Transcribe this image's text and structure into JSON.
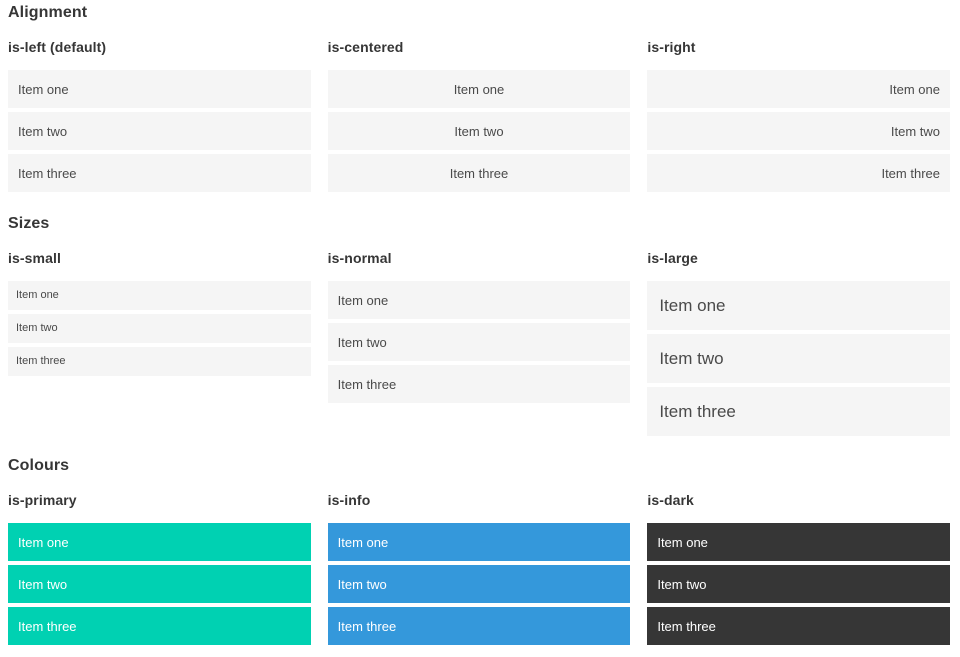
{
  "sections": [
    {
      "title": "Alignment",
      "variants": [
        {
          "label": "is-left (default)",
          "alignment": "left",
          "items": [
            "Item one",
            "Item two",
            "Item three"
          ]
        },
        {
          "label": "is-centered",
          "alignment": "center",
          "items": [
            "Item one",
            "Item two",
            "Item three"
          ]
        },
        {
          "label": "is-right",
          "alignment": "right",
          "items": [
            "Item one",
            "Item two",
            "Item three"
          ]
        }
      ]
    },
    {
      "title": "Sizes",
      "variants": [
        {
          "label": "is-small",
          "size": "small",
          "items": [
            "Item one",
            "Item two",
            "Item three"
          ]
        },
        {
          "label": "is-normal",
          "size": "normal",
          "items": [
            "Item one",
            "Item two",
            "Item three"
          ]
        },
        {
          "label": "is-large",
          "size": "large",
          "items": [
            "Item one",
            "Item two",
            "Item three"
          ]
        }
      ]
    },
    {
      "title": "Colours",
      "variants": [
        {
          "label": "is-primary",
          "color": "#00d1b2",
          "items": [
            "Item one",
            "Item two",
            "Item three"
          ]
        },
        {
          "label": "is-info",
          "color": "#3498db",
          "items": [
            "Item one",
            "Item two",
            "Item three"
          ]
        },
        {
          "label": "is-dark",
          "color": "#363636",
          "items": [
            "Item one",
            "Item two",
            "Item three"
          ]
        }
      ]
    }
  ],
  "theme": {
    "item_background": "#f5f5f5",
    "item_text": "#4a4a4a",
    "heading_text": "#363636",
    "colour_item_text": "#ffffff"
  }
}
